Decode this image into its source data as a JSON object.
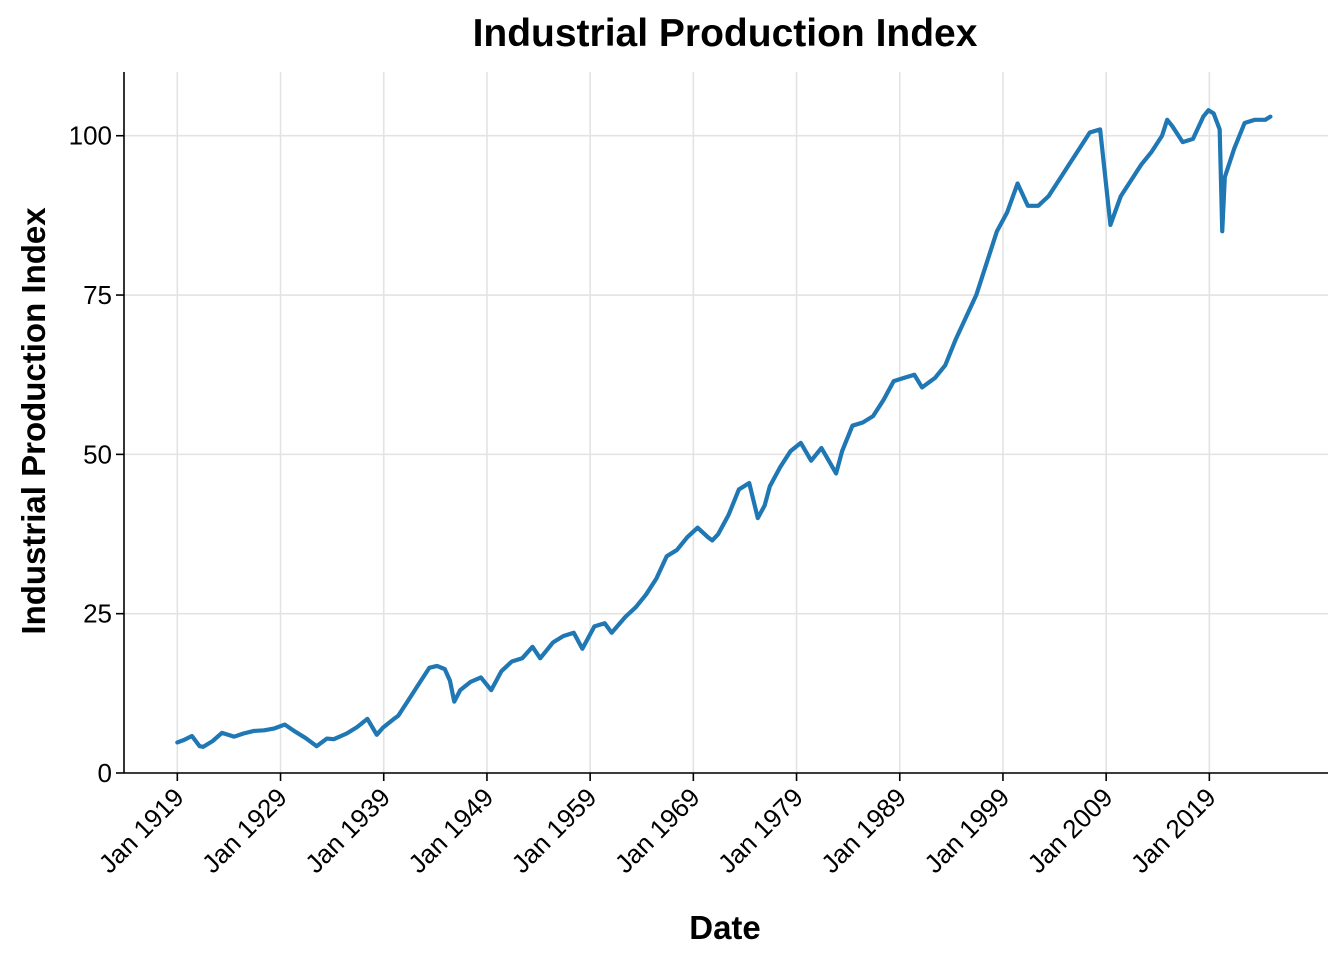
{
  "chart_data": {
    "type": "line",
    "title": "Industrial Production Index",
    "xlabel": "Date",
    "ylabel": "Industrial Production Index",
    "x_ticks": [
      "Jan 1919",
      "Jan 1929",
      "Jan 1939",
      "Jan 1949",
      "Jan 1959",
      "Jan 1969",
      "Jan 1979",
      "Jan 1989",
      "Jan 1999",
      "Jan 2009",
      "Jan 2019"
    ],
    "y_ticks": [
      "0",
      "25",
      "50",
      "75",
      "100"
    ],
    "ylim": [
      0,
      110
    ],
    "xlim": [
      "1913-11-01",
      "2030-07-01"
    ],
    "grid": true,
    "legend": "none",
    "colors": {
      "series": "#1f77b4",
      "grid": "#e3e3e3",
      "axis": "#000000"
    },
    "series": [
      {
        "x": [
          "1919-01-01",
          "1919-09-01",
          "1920-06-01",
          "1921-03-01",
          "1921-07-01",
          "1922-06-01",
          "1923-05-01",
          "1924-07-01",
          "1925-06-01",
          "1926-06-01",
          "1927-06-01",
          "1928-06-01",
          "1929-06-01",
          "1930-06-01",
          "1931-06-01",
          "1932-07-01",
          "1933-07-01",
          "1934-03-01",
          "1935-06-01",
          "1936-06-01",
          "1937-06-01",
          "1938-05-01",
          "1938-12-01",
          "1939-12-01",
          "1940-06-01",
          "1941-06-01",
          "1942-06-01",
          "1943-06-01",
          "1944-03-01",
          "1944-12-01",
          "1945-06-01",
          "1945-11-01",
          "1946-06-01",
          "1947-06-01",
          "1948-06-01",
          "1949-06-01",
          "1950-06-01",
          "1951-06-01",
          "1952-06-01",
          "1953-06-01",
          "1954-03-01",
          "1955-06-01",
          "1956-06-01",
          "1957-06-01",
          "1958-04-01",
          "1959-06-01",
          "1960-06-01",
          "1961-02-01",
          "1962-06-01",
          "1963-06-01",
          "1964-06-01",
          "1965-06-01",
          "1966-06-01",
          "1967-06-01",
          "1968-06-01",
          "1969-06-01",
          "1970-06-01",
          "1970-11-01",
          "1971-06-01",
          "1972-06-01",
          "1973-06-01",
          "1974-06-01",
          "1975-04-01",
          "1975-12-01",
          "1976-06-01",
          "1977-06-01",
          "1978-06-01",
          "1979-06-01",
          "1980-06-01",
          "1981-06-01",
          "1982-11-01",
          "1983-06-01",
          "1984-06-01",
          "1985-06-01",
          "1986-06-01",
          "1987-06-01",
          "1988-06-01",
          "1989-06-01",
          "1990-06-01",
          "1991-03-01",
          "1992-06-01",
          "1993-06-01",
          "1994-06-01",
          "1995-06-01",
          "1996-06-01",
          "1997-06-01",
          "1998-06-01",
          "1999-06-01",
          "2000-06-01",
          "2001-06-01",
          "2002-06-01",
          "2003-06-01",
          "2004-06-01",
          "2005-06-01",
          "2006-06-01",
          "2007-06-01",
          "2008-06-01",
          "2009-06-01",
          "2010-06-01",
          "2011-06-01",
          "2012-06-01",
          "2013-06-01",
          "2014-06-01",
          "2014-12-01",
          "2015-06-01",
          "2016-06-01",
          "2017-06-01",
          "2018-06-01",
          "2018-12-01",
          "2019-06-01",
          "2020-01-01",
          "2020-04-01",
          "2020-07-01",
          "2021-06-01",
          "2022-06-01",
          "2023-06-01",
          "2024-06-01",
          "2024-12-01"
        ],
        "values": [
          4.8,
          5.2,
          5.8,
          4.2,
          4.1,
          5.0,
          6.3,
          5.7,
          6.2,
          6.6,
          6.7,
          7.0,
          7.6,
          6.5,
          5.5,
          4.2,
          5.4,
          5.3,
          6.2,
          7.2,
          8.5,
          6.0,
          7.1,
          8.4,
          9.0,
          11.5,
          14.0,
          16.5,
          16.8,
          16.3,
          14.5,
          11.2,
          13.0,
          14.3,
          15.0,
          13.0,
          16.0,
          17.5,
          18.0,
          19.8,
          18.0,
          20.5,
          21.5,
          22.0,
          19.5,
          23.0,
          23.5,
          22.0,
          24.5,
          26.0,
          28.0,
          30.5,
          34.0,
          35.0,
          37.0,
          38.5,
          37.0,
          36.5,
          37.5,
          40.5,
          44.5,
          45.5,
          40.0,
          42.0,
          45.0,
          48.0,
          50.5,
          51.8,
          49.0,
          51.0,
          47.0,
          50.5,
          54.5,
          55.0,
          56.0,
          58.5,
          61.5,
          62.0,
          62.5,
          60.5,
          62.0,
          64.0,
          68.0,
          71.5,
          75.0,
          80.0,
          85.0,
          88.0,
          92.5,
          89.0,
          89.0,
          90.5,
          93.0,
          95.5,
          98.0,
          100.5,
          101.0,
          86.0,
          90.5,
          93.0,
          95.5,
          97.5,
          100.0,
          102.5,
          101.5,
          99.0,
          99.5,
          103.0,
          104.0,
          103.5,
          101.0,
          85.0,
          93.5,
          98.0,
          102.0,
          102.5,
          102.5,
          103.0
        ]
      }
    ]
  }
}
